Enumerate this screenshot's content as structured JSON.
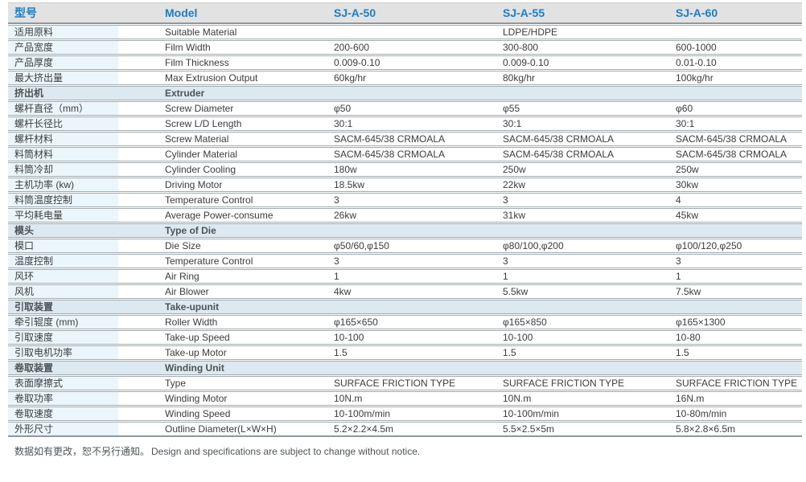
{
  "colors": {
    "accent_blue": "#1b7ec2",
    "header_bg": "#e2e2e2",
    "label_bg": "#eaf5fc",
    "section_bg": "#dde9f0",
    "rule_line": "#a3abb0"
  },
  "table": {
    "headers": {
      "col_cn": "型号",
      "col_model": "Model",
      "models": [
        "SJ-A-50",
        "SJ-A-55",
        "SJ-A-60"
      ]
    },
    "rows": [
      {
        "type": "data",
        "cn": "适用原料",
        "en": "Suitable Material",
        "values": [
          "",
          "LDPE/HDPE",
          ""
        ]
      },
      {
        "type": "data",
        "cn": "产品宽度",
        "en": "Film Width",
        "values": [
          "200-600",
          "300-800",
          "600-1000"
        ]
      },
      {
        "type": "data",
        "cn": "产品厚度",
        "en": "Film Thickness",
        "values": [
          "0.009-0.10",
          "0.009-0.10",
          "0.01-0.10"
        ]
      },
      {
        "type": "data",
        "cn": "最大挤出量",
        "en": "Max Extrusion Output",
        "values": [
          "60kg/hr",
          "80kg/hr",
          "100kg/hr"
        ]
      },
      {
        "type": "section",
        "cn": "挤出机",
        "en": "Extruder"
      },
      {
        "type": "data",
        "cn": "螺杆直径（mm）",
        "en": "Screw Diameter",
        "values": [
          "φ50",
          "φ55",
          "φ60"
        ]
      },
      {
        "type": "data",
        "cn": "螺杆长径比",
        "en": "Screw L/D Length",
        "values": [
          "30:1",
          "30:1",
          "30:1"
        ]
      },
      {
        "type": "data",
        "cn": "螺杆材料",
        "en": "Screw Material",
        "values": [
          "SACM-645/38 CRMOALA",
          "SACM-645/38 CRMOALA",
          "SACM-645/38 CRMOALA"
        ]
      },
      {
        "type": "data",
        "cn": "料筒材料",
        "en": "Cylinder Material",
        "values": [
          "SACM-645/38 CRMOALA",
          "SACM-645/38 CRMOALA",
          "SACM-645/38 CRMOALA"
        ]
      },
      {
        "type": "data",
        "cn": "料筒冷却",
        "en": "Cylinder Cooling",
        "values": [
          "180w",
          "250w",
          "250w"
        ]
      },
      {
        "type": "data",
        "cn": "主机功率 (kw)",
        "en": "Driving Motor",
        "values": [
          "18.5kw",
          "22kw",
          "30kw"
        ]
      },
      {
        "type": "data",
        "cn": "料筒温度控制",
        "en": "Temperature Control",
        "values": [
          "3",
          "3",
          "4"
        ]
      },
      {
        "type": "data",
        "cn": "平均耗电量",
        "en": "Average Power-consume",
        "values": [
          "26kw",
          "31kw",
          "45kw"
        ]
      },
      {
        "type": "section",
        "cn": "模头",
        "en": "Type of Die"
      },
      {
        "type": "data",
        "cn": "模口",
        "en": "Die Size",
        "values": [
          "φ50/60,φ150",
          "φ80/100,φ200",
          "φ100/120,φ250"
        ]
      },
      {
        "type": "data",
        "cn": "温度控制",
        "en": "Temperature Control",
        "values": [
          "3",
          "3",
          "3"
        ]
      },
      {
        "type": "data",
        "cn": "风环",
        "en": "Air Ring",
        "values": [
          "1",
          "1",
          "1"
        ]
      },
      {
        "type": "data",
        "cn": "风机",
        "en": "Air Blower",
        "values": [
          "4kw",
          "5.5kw",
          "7.5kw"
        ]
      },
      {
        "type": "section",
        "cn": "引取装置",
        "en": "Take-upunit"
      },
      {
        "type": "data",
        "cn": "牵引辊度 (mm)",
        "en": "Roller Width",
        "values": [
          "φ165×650",
          "φ165×850",
          "φ165×1300"
        ]
      },
      {
        "type": "data",
        "cn": "引取速度",
        "en": "Take-up Speed",
        "values": [
          "10-100",
          "10-100",
          "10-80"
        ]
      },
      {
        "type": "data",
        "cn": "引取电机功率",
        "en": "Take-up Motor",
        "values": [
          "1.5",
          "1.5",
          "1.5"
        ]
      },
      {
        "type": "section",
        "cn": "卷取装置",
        "en": "Winding Unit"
      },
      {
        "type": "data",
        "cn": "表面摩擦式",
        "en": "Type",
        "values": [
          "SURFACE FRICTION TYPE",
          "SURFACE FRICTION TYPE",
          "SURFACE FRICTION TYPE"
        ]
      },
      {
        "type": "data",
        "cn": "卷取功率",
        "en": "Winding Motor",
        "values": [
          "10N.m",
          "10N.m",
          "16N.m"
        ]
      },
      {
        "type": "data",
        "cn": "卷取速度",
        "en": "Winding Speed",
        "values": [
          "10-100m/min",
          "10-100m/min",
          "10-80m/min"
        ]
      },
      {
        "type": "data",
        "cn": "外形尺寸",
        "en": "Outline Diameter(L×W×H)",
        "values": [
          "5.2×2.2×4.5m",
          "5.5×2.5×5m",
          "5.8×2.8×6.5m"
        ]
      }
    ]
  },
  "footer": {
    "note_cn": "数据如有更改，恕不另行通知。",
    "note_en": "Design and specifications are subject to change without notice."
  }
}
